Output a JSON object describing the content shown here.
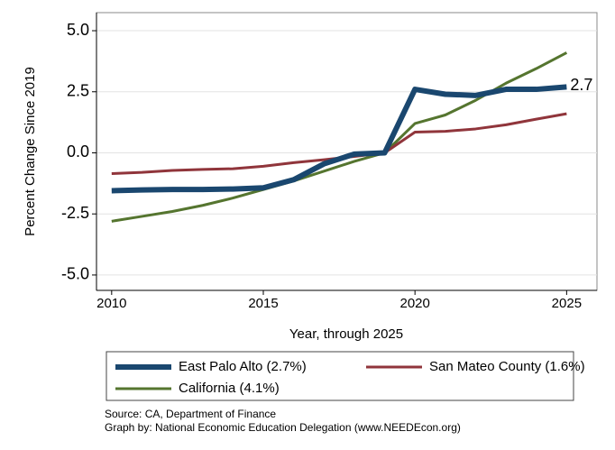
{
  "chart_data": {
    "type": "line",
    "ylabel": "Percent Change Since 2019",
    "xlabel": "Year, through 2025",
    "x": [
      2010,
      2011,
      2012,
      2013,
      2014,
      2015,
      2016,
      2017,
      2018,
      2019,
      2020,
      2021,
      2022,
      2023,
      2024,
      2025
    ],
    "series": [
      {
        "name": "East Palo Alto (2.7%)",
        "color": "#1a476f",
        "width": 6,
        "values": [
          -1.55,
          -1.52,
          -1.5,
          -1.5,
          -1.48,
          -1.43,
          -1.1,
          -0.45,
          -0.05,
          0,
          2.6,
          2.4,
          2.35,
          2.6,
          2.6,
          2.7
        ]
      },
      {
        "name": "San Mateo County (1.6%)",
        "color": "#90353b",
        "width": 3,
        "values": [
          -0.85,
          -0.8,
          -0.72,
          -0.68,
          -0.65,
          -0.55,
          -0.4,
          -0.28,
          -0.15,
          0,
          0.85,
          0.88,
          0.98,
          1.15,
          1.38,
          1.6
        ]
      },
      {
        "name": "California (4.1%)",
        "color": "#55752f",
        "width": 3,
        "values": [
          -2.8,
          -2.6,
          -2.4,
          -2.15,
          -1.85,
          -1.5,
          -1.15,
          -0.75,
          -0.35,
          0,
          1.2,
          1.55,
          2.15,
          2.85,
          3.45,
          4.1
        ]
      }
    ],
    "annotation": {
      "x": 2025,
      "y": 2.7,
      "text": "2.7"
    },
    "xlim": [
      2009.5,
      2026
    ],
    "ylim": [
      -5.63,
      5.74
    ],
    "xticks": [
      2010,
      2015,
      2020,
      2025
    ],
    "yticks": [
      {
        "value": 5,
        "label": "5.0"
      },
      {
        "value": 2.5,
        "label": "2.5"
      },
      {
        "value": 0,
        "label": "0.0"
      },
      {
        "value": -2.5,
        "label": "-2.5"
      },
      {
        "value": -5,
        "label": "-5.0"
      }
    ],
    "grid": true,
    "notes": [
      "Source: CA, Department of Finance",
      "Graph by: National Economic Education Delegation (www.NEEDEcon.org)"
    ]
  }
}
